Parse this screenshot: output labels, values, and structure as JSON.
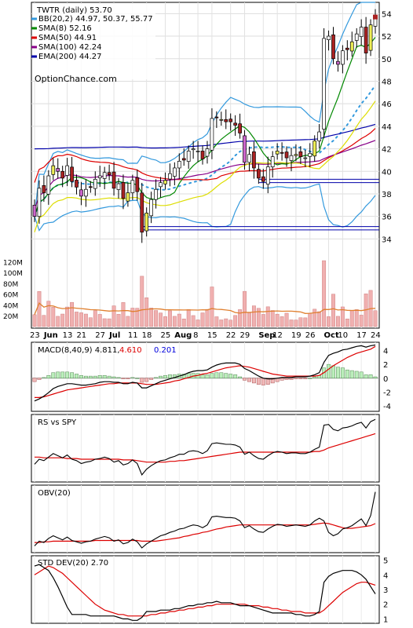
{
  "colors": {
    "bb": "#3399dd",
    "sma8": "#008800",
    "sma50": "#dd0000",
    "sma100": "#880088",
    "ema200": "#0000aa",
    "bbmid": "#dddd00",
    "macd_red": "#dd0000",
    "macd_blue": "#0000dd",
    "volume": "#f0b0b0",
    "vol_ma": "#e08030"
  },
  "header": {
    "title": "TWTR (daily) 53.70",
    "watermark": "OptionChance.com"
  },
  "legend": [
    {
      "label": "BB(20,2) 44.97, 50.37, 55.77",
      "color_key": "bb",
      "icon": "line-swatch"
    },
    {
      "label": "SMA(8) 52.16",
      "color_key": "sma8",
      "icon": "line-swatch"
    },
    {
      "label": "SMA(50) 44.91",
      "color_key": "sma50",
      "icon": "line-swatch"
    },
    {
      "label": "SMA(100) 42.24",
      "color_key": "sma100",
      "icon": "line-swatch"
    },
    {
      "label": "EMA(200) 44.27",
      "color_key": "ema200",
      "icon": "line-swatch"
    }
  ],
  "macd_legend": {
    "label": "MACD(8,40,9) 4.811,",
    "v1": "4.610",
    "v2": "0.201"
  },
  "rs_legend": {
    "label": "RS vs SPY"
  },
  "obv_legend": {
    "label": "OBV(20)"
  },
  "std_legend": {
    "label": "STD DEV(20) 2.70"
  },
  "chart_data": [
    {
      "type": "candlestick",
      "title": "TWTR (daily) 53.70",
      "y_ticks": [
        "54",
        "52",
        "50",
        "48",
        "46",
        "44",
        "42",
        "40",
        "38",
        "36",
        "34"
      ],
      "ylim": [
        33.4,
        55
      ],
      "x_tick_labels": [
        "23",
        "Jun",
        "13",
        "21",
        "27",
        "Jul",
        "11",
        "18",
        "25",
        "Aug",
        "8",
        "15",
        "22",
        "29",
        "Sep",
        "12",
        "19",
        "26",
        "Oct",
        "10",
        "17",
        "24"
      ],
      "close": [
        36.0,
        38.5,
        38.1,
        39.6,
        40.5,
        40.0,
        39.4,
        40.5,
        39.1,
        38.6,
        37.8,
        38.4,
        38.6,
        39.3,
        39.6,
        39.9,
        39.7,
        38.5,
        38.9,
        37.6,
        38.1,
        39.2,
        38.2,
        34.6,
        36.3,
        37.5,
        38.4,
        39.0,
        39.2,
        39.8,
        40.3,
        40.9,
        41.0,
        41.8,
        42.0,
        41.8,
        41.1,
        42.0,
        44.7,
        44.8,
        44.6,
        44.4,
        44.4,
        44.1,
        43.4,
        40.8,
        41.5,
        40.3,
        39.4,
        39.1,
        40.4,
        41.3,
        41.8,
        41.6,
        41.2,
        41.4,
        41.5,
        41.3,
        41.2,
        41.6,
        42.7,
        43.5,
        51.8,
        52.0,
        50.0,
        49.5,
        50.7,
        50.8,
        51.5,
        52.2,
        52.8,
        50.5,
        53.0,
        53.7
      ],
      "volume_ticks": [
        "120M",
        "100M",
        "80M",
        "60M",
        "40M",
        "20M"
      ],
      "volume_ylim": [
        0,
        125
      ]
    },
    {
      "type": "line",
      "title": "MACD(8,40,9) 4.811, 4.610, 0.201",
      "y_ticks": [
        "4",
        "2",
        "0",
        "-2",
        "-4"
      ],
      "ylim": [
        -4.8,
        5.2
      ],
      "macd": [
        -3.3,
        -3.0,
        -2.6,
        -2.1,
        -1.5,
        -1.2,
        -1.0,
        -0.8,
        -0.8,
        -0.9,
        -1.0,
        -1.0,
        -0.9,
        -0.8,
        -0.6,
        -0.5,
        -0.5,
        -0.6,
        -0.6,
        -0.8,
        -0.8,
        -0.6,
        -0.7,
        -1.4,
        -1.4,
        -1.1,
        -0.8,
        -0.5,
        -0.3,
        -0.1,
        0.1,
        0.3,
        0.5,
        0.8,
        1.0,
        1.1,
        1.1,
        1.2,
        1.6,
        1.9,
        2.1,
        2.2,
        2.2,
        2.2,
        2.0,
        1.4,
        1.1,
        0.7,
        0.3,
        0.0,
        -0.1,
        -0.1,
        0.0,
        0.1,
        0.1,
        0.1,
        0.2,
        0.2,
        0.2,
        0.3,
        0.5,
        0.8,
        2.3,
        3.3,
        3.6,
        3.8,
        4.1,
        4.2,
        4.4,
        4.6,
        4.7,
        4.5,
        4.7,
        4.8
      ],
      "signal": [
        -2.8,
        -2.8,
        -2.7,
        -2.5,
        -2.3,
        -2.1,
        -1.9,
        -1.7,
        -1.6,
        -1.5,
        -1.4,
        -1.3,
        -1.2,
        -1.1,
        -1.0,
        -0.9,
        -0.8,
        -0.8,
        -0.7,
        -0.7,
        -0.7,
        -0.7,
        -0.7,
        -0.8,
        -0.9,
        -0.9,
        -0.9,
        -0.8,
        -0.7,
        -0.6,
        -0.4,
        -0.3,
        -0.1,
        0.1,
        0.3,
        0.4,
        0.6,
        0.7,
        0.9,
        1.1,
        1.3,
        1.5,
        1.6,
        1.7,
        1.8,
        1.7,
        1.6,
        1.4,
        1.2,
        1.0,
        0.8,
        0.6,
        0.5,
        0.4,
        0.3,
        0.3,
        0.3,
        0.3,
        0.3,
        0.3,
        0.3,
        0.4,
        0.8,
        1.3,
        1.8,
        2.2,
        2.6,
        3.0,
        3.3,
        3.6,
        3.8,
        4.0,
        4.2,
        4.6
      ]
    },
    {
      "type": "line",
      "title": "RS vs SPY",
      "rs": [
        0.35,
        0.42,
        0.4,
        0.45,
        0.5,
        0.47,
        0.44,
        0.48,
        0.42,
        0.4,
        0.36,
        0.38,
        0.39,
        0.42,
        0.43,
        0.45,
        0.43,
        0.38,
        0.4,
        0.34,
        0.36,
        0.41,
        0.36,
        0.2,
        0.28,
        0.33,
        0.37,
        0.4,
        0.41,
        0.44,
        0.46,
        0.49,
        0.49,
        0.53,
        0.54,
        0.53,
        0.5,
        0.54,
        0.64,
        0.65,
        0.64,
        0.63,
        0.63,
        0.62,
        0.59,
        0.49,
        0.52,
        0.47,
        0.43,
        0.42,
        0.47,
        0.51,
        0.53,
        0.52,
        0.5,
        0.51,
        0.51,
        0.5,
        0.5,
        0.52,
        0.56,
        0.59,
        0.9,
        0.91,
        0.84,
        0.82,
        0.86,
        0.87,
        0.89,
        0.92,
        0.94,
        0.86,
        0.95,
        0.98
      ],
      "rs_ma": [
        0.45,
        0.45,
        0.44,
        0.44,
        0.44,
        0.44,
        0.44,
        0.43,
        0.43,
        0.43,
        0.42,
        0.42,
        0.42,
        0.42,
        0.42,
        0.42,
        0.42,
        0.42,
        0.42,
        0.41,
        0.41,
        0.41,
        0.4,
        0.39,
        0.38,
        0.38,
        0.38,
        0.38,
        0.38,
        0.39,
        0.39,
        0.4,
        0.4,
        0.41,
        0.42,
        0.43,
        0.44,
        0.45,
        0.46,
        0.47,
        0.48,
        0.49,
        0.5,
        0.51,
        0.52,
        0.52,
        0.52,
        0.52,
        0.52,
        0.52,
        0.52,
        0.52,
        0.52,
        0.52,
        0.52,
        0.52,
        0.52,
        0.52,
        0.52,
        0.52,
        0.53,
        0.53,
        0.55,
        0.58,
        0.6,
        0.62,
        0.64,
        0.66,
        0.68,
        0.7,
        0.72,
        0.74,
        0.76,
        0.78
      ]
    },
    {
      "type": "line",
      "title": "OBV(20)",
      "obv": [
        0.15,
        0.22,
        0.2,
        0.26,
        0.3,
        0.27,
        0.24,
        0.28,
        0.23,
        0.21,
        0.19,
        0.21,
        0.22,
        0.25,
        0.27,
        0.29,
        0.27,
        0.22,
        0.24,
        0.18,
        0.2,
        0.25,
        0.21,
        0.12,
        0.18,
        0.22,
        0.26,
        0.3,
        0.32,
        0.35,
        0.37,
        0.4,
        0.41,
        0.44,
        0.46,
        0.45,
        0.42,
        0.46,
        0.58,
        0.59,
        0.58,
        0.57,
        0.57,
        0.56,
        0.52,
        0.42,
        0.45,
        0.4,
        0.36,
        0.35,
        0.4,
        0.44,
        0.47,
        0.46,
        0.44,
        0.45,
        0.46,
        0.45,
        0.44,
        0.46,
        0.52,
        0.56,
        0.52,
        0.35,
        0.3,
        0.33,
        0.4,
        0.42,
        0.45,
        0.5,
        0.55,
        0.45,
        0.6,
        0.95
      ],
      "obv_ma": [
        0.2,
        0.2,
        0.21,
        0.21,
        0.22,
        0.22,
        0.22,
        0.22,
        0.22,
        0.22,
        0.22,
        0.22,
        0.22,
        0.23,
        0.23,
        0.23,
        0.23,
        0.23,
        0.23,
        0.23,
        0.23,
        0.23,
        0.23,
        0.22,
        0.22,
        0.22,
        0.22,
        0.23,
        0.24,
        0.25,
        0.26,
        0.27,
        0.29,
        0.3,
        0.32,
        0.33,
        0.35,
        0.36,
        0.38,
        0.4,
        0.41,
        0.43,
        0.44,
        0.45,
        0.46,
        0.46,
        0.46,
        0.46,
        0.46,
        0.46,
        0.46,
        0.46,
        0.46,
        0.46,
        0.46,
        0.46,
        0.46,
        0.46,
        0.46,
        0.46,
        0.47,
        0.48,
        0.49,
        0.48,
        0.46,
        0.44,
        0.42,
        0.41,
        0.41,
        0.42,
        0.43,
        0.44,
        0.45,
        0.48
      ]
    },
    {
      "type": "line",
      "title": "STD DEV(20) 2.70",
      "y_ticks": [
        "5",
        "4",
        "3",
        "2",
        "1"
      ],
      "ylim": [
        0.7,
        5.3
      ],
      "std": [
        4.6,
        4.7,
        4.5,
        4.3,
        3.8,
        3.2,
        2.5,
        1.8,
        1.3,
        1.3,
        1.3,
        1.3,
        1.2,
        1.2,
        1.2,
        1.2,
        1.2,
        1.2,
        1.1,
        1.0,
        1.0,
        0.9,
        0.9,
        1.1,
        1.5,
        1.5,
        1.5,
        1.6,
        1.6,
        1.6,
        1.7,
        1.7,
        1.8,
        1.9,
        1.9,
        2.0,
        2.0,
        2.1,
        2.1,
        2.2,
        2.1,
        2.1,
        2.1,
        2.0,
        1.9,
        1.9,
        1.9,
        1.8,
        1.7,
        1.6,
        1.5,
        1.4,
        1.4,
        1.4,
        1.4,
        1.4,
        1.3,
        1.3,
        1.2,
        1.2,
        1.3,
        1.5,
        3.5,
        3.9,
        4.1,
        4.2,
        4.3,
        4.3,
        4.3,
        4.2,
        4.0,
        3.7,
        3.2,
        2.7
      ],
      "std_ma": [
        4.0,
        4.2,
        4.4,
        4.6,
        4.5,
        4.3,
        4.1,
        3.8,
        3.5,
        3.2,
        2.9,
        2.6,
        2.3,
        2.0,
        1.8,
        1.6,
        1.5,
        1.4,
        1.3,
        1.3,
        1.2,
        1.2,
        1.2,
        1.2,
        1.2,
        1.3,
        1.3,
        1.4,
        1.4,
        1.5,
        1.5,
        1.6,
        1.6,
        1.7,
        1.7,
        1.8,
        1.8,
        1.9,
        1.9,
        2.0,
        2.0,
        2.0,
        2.0,
        2.0,
        2.0,
        2.0,
        1.9,
        1.9,
        1.9,
        1.8,
        1.8,
        1.7,
        1.7,
        1.6,
        1.6,
        1.5,
        1.5,
        1.5,
        1.4,
        1.4,
        1.4,
        1.4,
        1.6,
        1.9,
        2.2,
        2.5,
        2.8,
        3.0,
        3.2,
        3.4,
        3.5,
        3.5,
        3.4,
        3.3
      ]
    }
  ]
}
